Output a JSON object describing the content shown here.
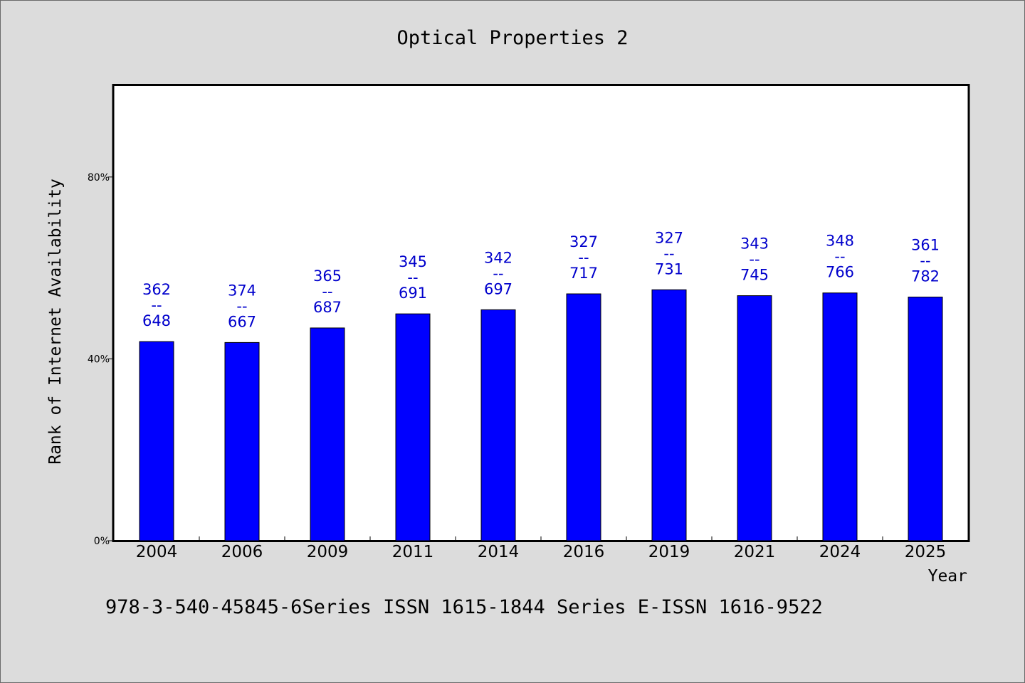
{
  "chart_data": {
    "type": "bar",
    "title": "Optical Properties 2",
    "xlabel": "Year",
    "ylabel": "Rank of Internet Availability",
    "footnote": "978-3-540-45845-6Series ISSN 1615-1844 Series E-ISSN 1616-9522",
    "categories": [
      "2004",
      "2006",
      "2009",
      "2011",
      "2014",
      "2016",
      "2019",
      "2021",
      "2024",
      "2025"
    ],
    "values": [
      43.8,
      43.6,
      46.8,
      49.9,
      50.8,
      54.3,
      55.2,
      53.9,
      54.5,
      53.6
    ],
    "bar_labels": [
      {
        "top": "362",
        "sep": "--",
        "bottom": "648"
      },
      {
        "top": "374",
        "sep": "--",
        "bottom": "667"
      },
      {
        "top": "365",
        "sep": "--",
        "bottom": "687"
      },
      {
        "top": "345",
        "sep": "--",
        "bottom": "691"
      },
      {
        "top": "342",
        "sep": "--",
        "bottom": "697"
      },
      {
        "top": "327",
        "sep": "--",
        "bottom": "717"
      },
      {
        "top": "327",
        "sep": "--",
        "bottom": "731"
      },
      {
        "top": "343",
        "sep": "--",
        "bottom": "745"
      },
      {
        "top": "348",
        "sep": "--",
        "bottom": "766"
      },
      {
        "top": "361",
        "sep": "--",
        "bottom": "782"
      }
    ],
    "y_ticks": [
      {
        "value": 0,
        "label": "0%"
      },
      {
        "value": 40,
        "label": "40%"
      },
      {
        "value": 80,
        "label": "80%"
      }
    ],
    "ylim": [
      0,
      100
    ],
    "grid": false,
    "legend": "none",
    "colors": {
      "bar": "#0000ff",
      "bar_label": "#0000cc",
      "axis": "#000000",
      "background": "#dcdcdc",
      "plot_background": "#ffffff"
    }
  }
}
